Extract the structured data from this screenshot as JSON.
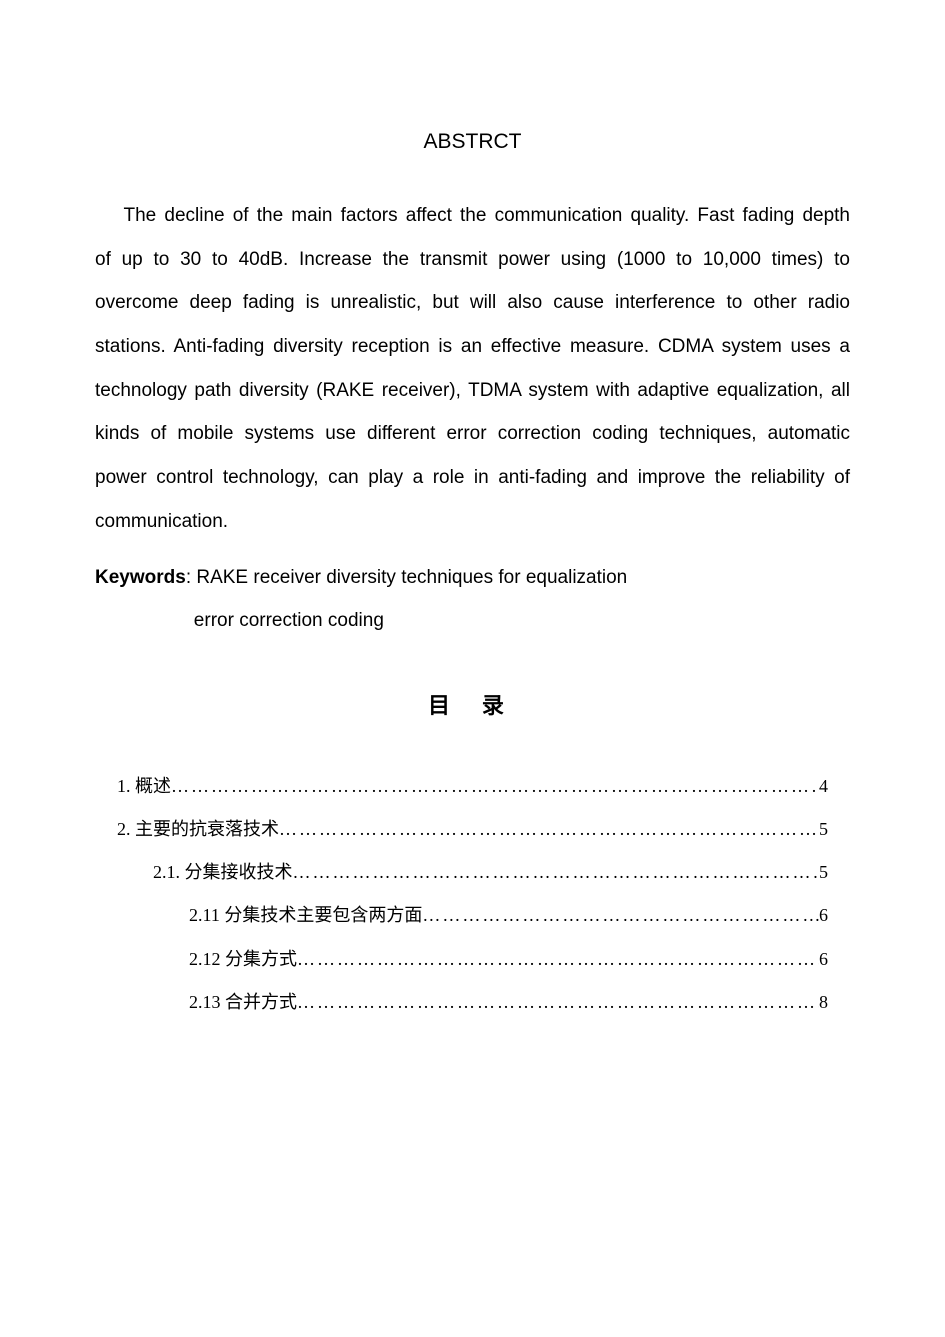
{
  "abstract": {
    "title": "ABSTRCT",
    "body": "The decline of the main factors affect the communication quality. Fast fading depth of up to 30 to 40dB. Increase the transmit power using (1000 to 10,000 times) to overcome deep fading is unrealistic, but will also cause interference to other radio stations. Anti-fading diversity reception is an effective measure. CDMA system uses a technology path diversity (RAKE  receiver), TDMA  system with adaptive equalization, all kinds of mobile systems use different error correction coding techniques, automatic power control technology, can play a role in anti-fading and improve the reliability of communication.",
    "keywords_label": "Keywords",
    "keywords_line1": ": RAKE receiver    diversity techniques for equalization",
    "keywords_line2": "error correction coding"
  },
  "toc": {
    "title": "目 录",
    "items": [
      {
        "level": 1,
        "label": "1. 概述",
        "page": "4"
      },
      {
        "level": 1,
        "label": "2. 主要的抗衰落技术",
        "page": "5"
      },
      {
        "level": 2,
        "label": "2.1. 分集接收技术",
        "page": "5"
      },
      {
        "level": 3,
        "label": "2.11 分集技术主要包含两方面",
        "page": "6"
      },
      {
        "level": 3,
        "label": "2.12 分集方式",
        "page": "6"
      },
      {
        "level": 3,
        "label": "2.13 合并方式",
        "page": "8"
      }
    ]
  },
  "style": {
    "background_color": "#ffffff",
    "text_color": "#000000",
    "abstract_title_fontsize": 21,
    "body_fontsize": 19,
    "body_lineheight": 2.3,
    "toc_title_fontsize": 22,
    "toc_item_fontsize": 18,
    "toc_lineheight": 2.4
  }
}
